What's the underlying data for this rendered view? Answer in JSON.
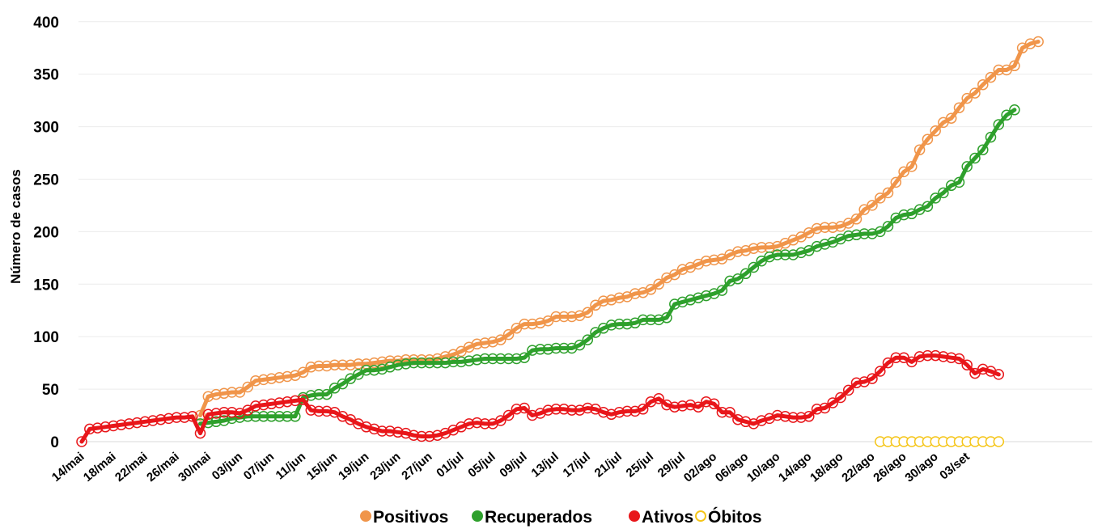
{
  "chart_data": {
    "type": "line",
    "title": "",
    "xlabel": "",
    "ylabel": "Número de casos",
    "ylim": [
      0,
      450
    ],
    "yticks": [
      "0",
      "50",
      "100",
      "150",
      "200",
      "250",
      "300",
      "350",
      "400",
      "450"
    ],
    "grid": true,
    "legend": "bottom",
    "x_start": "14/mai",
    "x_tick_labels": [
      "14/mai",
      "18/mai",
      "22/mai",
      "26/mai",
      "30/mai",
      "03/jun",
      "07/jun",
      "11/jun",
      "15/jun",
      "19/jun",
      "23/jun",
      "27/jun",
      "01/jul",
      "05/jul",
      "09/jul",
      "13/jul",
      "17/jul",
      "21/jul",
      "25/jul",
      "29/jul",
      "02/ago",
      "06/ago",
      "10/ago",
      "14/ago",
      "18/ago",
      "22/ago",
      "26/ago",
      "30/ago",
      "03/set"
    ],
    "series": [
      {
        "name": "Positivos",
        "color": "#f0954a",
        "start_index": 15,
        "values": [
          25,
          43,
          45,
          46,
          47,
          47,
          52,
          58,
          59,
          60,
          61,
          62,
          63,
          66,
          71,
          72,
          72,
          73,
          73,
          73,
          74,
          74,
          75,
          76,
          77,
          77,
          78,
          78,
          78,
          78,
          79,
          81,
          83,
          86,
          90,
          93,
          94,
          95,
          97,
          102,
          108,
          112,
          112,
          113,
          115,
          119,
          119,
          119,
          120,
          123,
          130,
          134,
          135,
          137,
          138,
          141,
          142,
          145,
          150,
          156,
          159,
          164,
          166,
          169,
          172,
          173,
          174,
          178,
          181,
          182,
          184,
          185,
          185,
          186,
          189,
          192,
          195,
          199,
          203,
          204,
          204,
          205,
          208,
          212,
          221,
          225,
          232,
          237,
          247,
          257,
          262,
          278,
          288,
          296,
          304,
          308,
          318,
          327,
          332,
          340,
          347,
          354,
          354,
          358,
          375,
          379,
          381
        ]
      },
      {
        "name": "Recuperados",
        "color": "#2ea02c",
        "start_index": 15,
        "values": [
          17,
          18,
          19,
          20,
          22,
          23,
          24,
          24,
          24,
          24,
          24,
          24,
          24,
          42,
          44,
          45,
          45,
          51,
          55,
          60,
          64,
          68,
          68,
          69,
          71,
          73,
          74,
          75,
          75,
          75,
          75,
          75,
          76,
          76,
          77,
          78,
          79,
          79,
          79,
          79,
          79,
          80,
          87,
          88,
          88,
          89,
          89,
          89,
          92,
          97,
          104,
          108,
          111,
          112,
          112,
          113,
          116,
          116,
          116,
          118,
          131,
          133,
          135,
          137,
          139,
          141,
          144,
          153,
          155,
          160,
          166,
          172,
          176,
          178,
          178,
          178,
          180,
          182,
          186,
          188,
          190,
          193,
          196,
          197,
          198,
          198,
          200,
          205,
          213,
          216,
          217,
          221,
          224,
          232,
          237,
          244,
          247,
          262,
          270,
          278,
          290,
          302,
          311,
          316
        ]
      },
      {
        "name": "Ativos",
        "color": "#e8161a",
        "start_index": 0,
        "values": [
          0,
          12,
          13,
          14,
          15,
          16,
          17,
          18,
          19,
          20,
          21,
          22,
          23,
          23,
          24,
          8,
          26,
          27,
          28,
          28,
          27,
          30,
          34,
          35,
          36,
          37,
          38,
          39,
          40,
          30,
          29,
          29,
          28,
          24,
          21,
          17,
          14,
          12,
          10,
          10,
          9,
          8,
          6,
          5,
          5,
          6,
          8,
          11,
          14,
          17,
          18,
          17,
          17,
          20,
          25,
          31,
          32,
          25,
          27,
          30,
          31,
          31,
          30,
          30,
          32,
          31,
          28,
          26,
          28,
          29,
          29,
          31,
          38,
          41,
          35,
          33,
          34,
          35,
          33,
          38,
          36,
          28,
          28,
          21,
          19,
          17,
          20,
          22,
          25,
          24,
          23,
          23,
          24,
          31,
          32,
          37,
          42,
          49,
          56,
          57,
          60,
          67,
          75,
          80,
          80,
          76,
          81,
          82,
          82,
          81,
          80,
          79,
          73,
          65,
          69,
          67,
          64
        ]
      },
      {
        "name": "Óbitos",
        "color": "#f5c518",
        "start_index": 101,
        "values": [
          0,
          0,
          0,
          0,
          0,
          0,
          0,
          0,
          0,
          0,
          0,
          0,
          0,
          0,
          0,
          0
        ]
      }
    ]
  }
}
